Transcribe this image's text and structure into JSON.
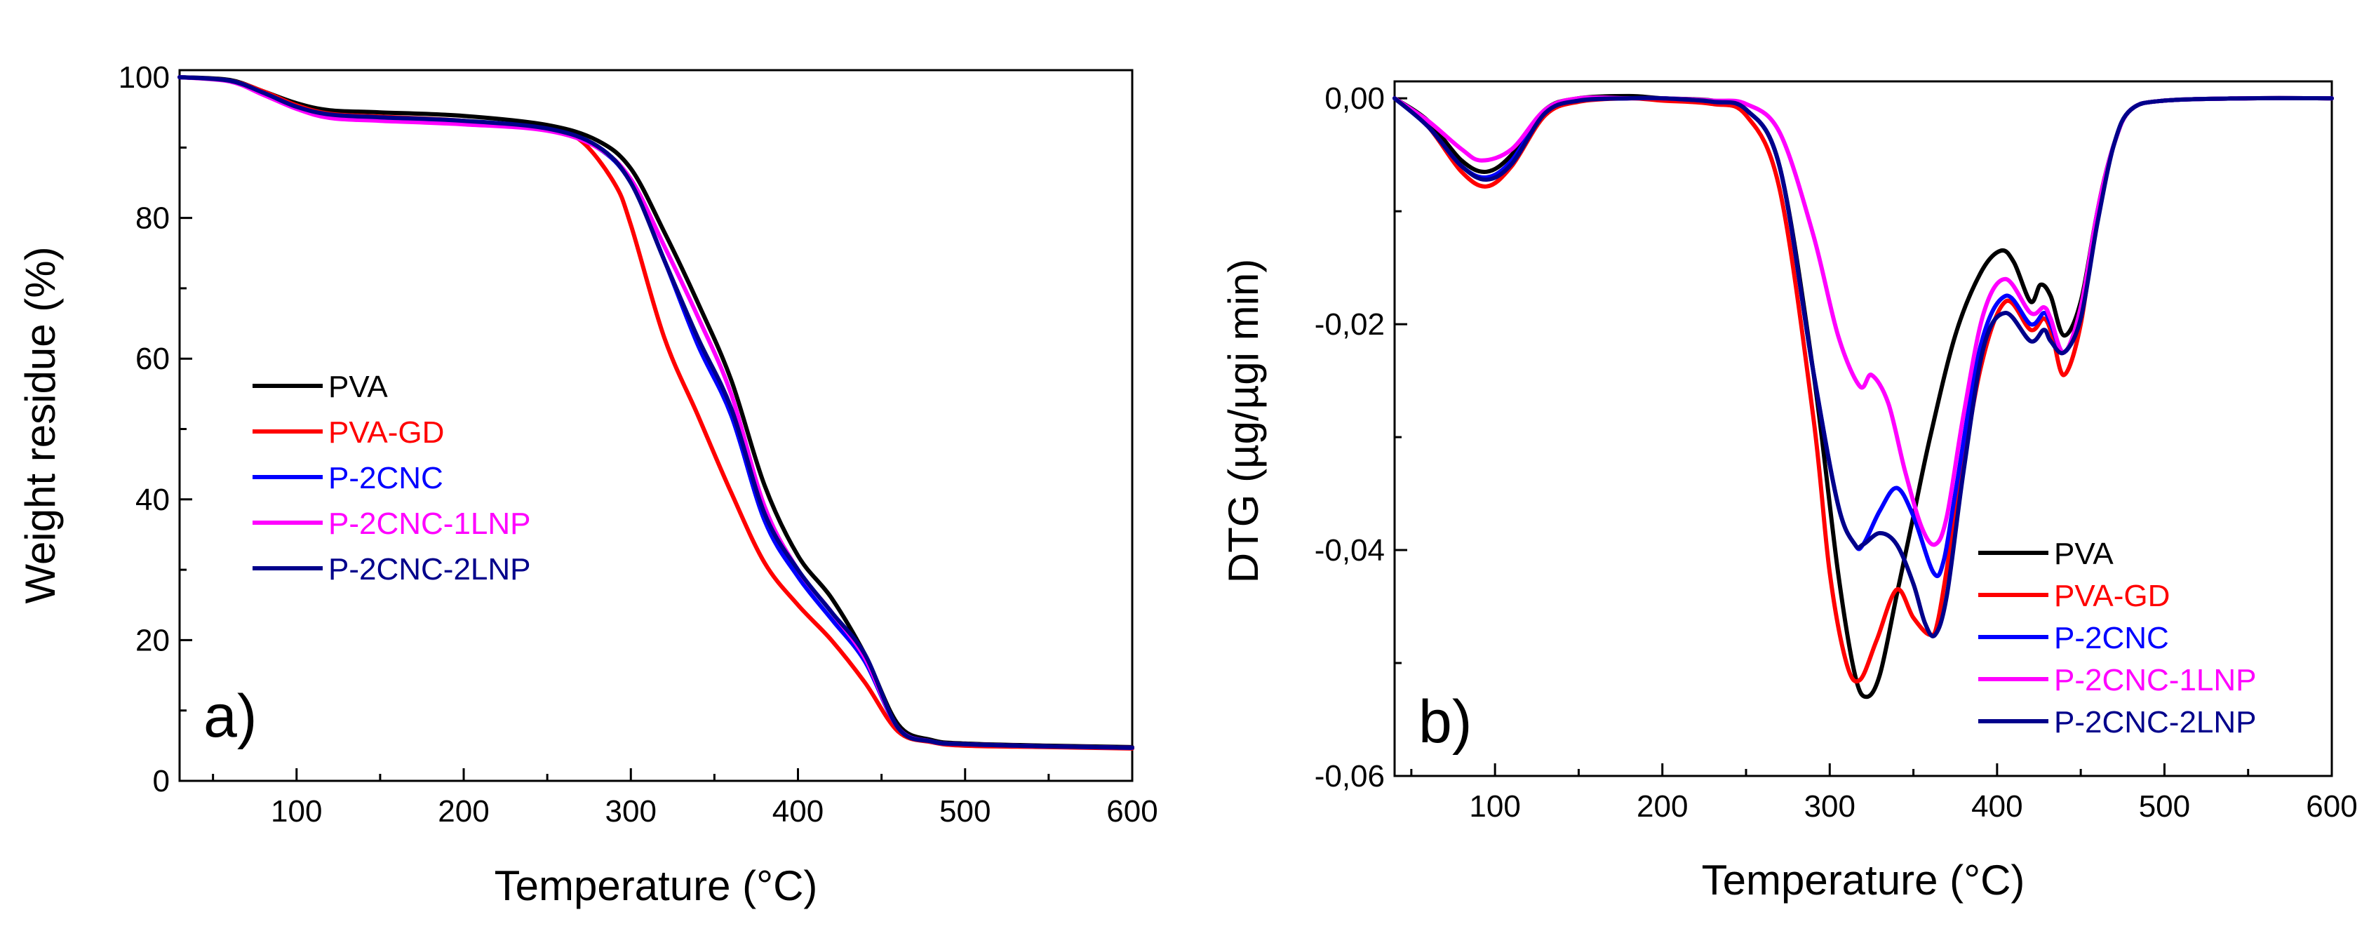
{
  "chart_data": [
    {
      "type": "line",
      "panel_label": "a)",
      "xlabel": "Temperature (°C)",
      "ylabel": "Weight residue (%)",
      "xlim": [
        30,
        600
      ],
      "ylim": [
        0,
        101
      ],
      "xticks": [
        100,
        200,
        300,
        400,
        500,
        600
      ],
      "xtick_labels": [
        "100",
        "200",
        "300",
        "400",
        "500",
        "600"
      ],
      "yticks": [
        0,
        20,
        40,
        60,
        80,
        100
      ],
      "ytick_labels": [
        "0",
        "20",
        "40",
        "60",
        "80",
        "100"
      ],
      "legend_position": "center-left",
      "series": [
        {
          "name": "PVA",
          "color": "#000000",
          "x": [
            30,
            60,
            80,
            100,
            120,
            150,
            200,
            250,
            280,
            300,
            320,
            340,
            360,
            380,
            400,
            420,
            440,
            460,
            480,
            500,
            550,
            600
          ],
          "y": [
            100,
            99.6,
            98,
            96.3,
            95.3,
            95,
            94.5,
            93.2,
            91,
            87,
            78,
            68,
            57,
            42,
            32,
            26,
            18,
            8,
            5.8,
            5.3,
            5,
            4.8
          ]
        },
        {
          "name": "PVA-GD",
          "color": "#ff0000",
          "x": [
            30,
            60,
            80,
            100,
            120,
            150,
            200,
            250,
            270,
            290,
            300,
            320,
            340,
            360,
            380,
            400,
            420,
            440,
            460,
            480,
            500,
            550,
            600
          ],
          "y": [
            100,
            99.5,
            98,
            96,
            94.8,
            94.4,
            93.8,
            92.5,
            91,
            85,
            79,
            63,
            52,
            41,
            31,
            25,
            20,
            14,
            7,
            5.5,
            5,
            4.8,
            4.6
          ]
        },
        {
          "name": "P-2CNC",
          "color": "#0000ff",
          "x": [
            30,
            60,
            80,
            100,
            120,
            150,
            200,
            250,
            280,
            300,
            320,
            340,
            360,
            380,
            400,
            420,
            440,
            460,
            480,
            500,
            550,
            600
          ],
          "y": [
            100,
            99.5,
            97.8,
            95.8,
            94.6,
            94.2,
            93.7,
            92.6,
            90,
            85,
            74,
            62,
            52,
            37,
            29,
            23,
            17,
            7.5,
            5.6,
            5.2,
            4.9,
            4.7
          ]
        },
        {
          "name": "P-2CNC-1LNP",
          "color": "#ff00ff",
          "x": [
            30,
            60,
            80,
            100,
            120,
            150,
            200,
            250,
            280,
            300,
            320,
            340,
            360,
            380,
            400,
            420,
            440,
            460,
            480,
            500,
            550,
            600
          ],
          "y": [
            100,
            99.4,
            97.5,
            95.5,
            94.2,
            93.8,
            93.3,
            92.4,
            90,
            85.5,
            76,
            66,
            55,
            39,
            30,
            24,
            17.5,
            7.5,
            5.6,
            5.2,
            4.9,
            4.7
          ]
        },
        {
          "name": "P-2CNC-2LNP",
          "color": "#00008b",
          "x": [
            30,
            60,
            80,
            100,
            120,
            150,
            200,
            250,
            280,
            300,
            320,
            340,
            360,
            380,
            400,
            420,
            440,
            460,
            480,
            500,
            550,
            600
          ],
          "y": [
            100,
            99.5,
            97.8,
            95.8,
            94.7,
            94.3,
            93.8,
            92.7,
            90.2,
            85,
            74,
            63,
            53,
            38,
            30,
            24,
            18,
            7.5,
            5.6,
            5.2,
            4.9,
            4.7
          ]
        }
      ]
    },
    {
      "type": "line",
      "panel_label": "b)",
      "xlabel": "Temperature (°C)",
      "ylabel": "DTG (µg/µgi min)",
      "xlim": [
        40,
        600
      ],
      "ylim": [
        -0.06,
        0.0015
      ],
      "xticks": [
        100,
        200,
        300,
        400,
        500,
        600
      ],
      "xtick_labels": [
        "100",
        "200",
        "300",
        "400",
        "500",
        "600"
      ],
      "yticks": [
        0,
        -0.02,
        -0.04,
        -0.06
      ],
      "ytick_labels": [
        "0,00",
        "-0,02",
        "-0,04",
        "-0,06"
      ],
      "legend_position": "bottom-right",
      "series": [
        {
          "name": "PVA",
          "color": "#000000",
          "x": [
            40,
            60,
            80,
            95,
            110,
            130,
            150,
            180,
            200,
            230,
            250,
            270,
            290,
            305,
            315,
            322,
            330,
            340,
            350,
            360,
            375,
            390,
            402,
            410,
            420,
            426,
            432,
            440,
            450,
            460,
            470,
            480,
            500,
            550,
            600
          ],
          "y": [
            0,
            -0.002,
            -0.0055,
            -0.0065,
            -0.005,
            -0.001,
            0,
            0.0002,
            0,
            -0.0002,
            -0.001,
            -0.006,
            -0.024,
            -0.042,
            -0.051,
            -0.053,
            -0.051,
            -0.044,
            -0.037,
            -0.03,
            -0.021,
            -0.0155,
            -0.0135,
            -0.0145,
            -0.018,
            -0.0165,
            -0.0175,
            -0.021,
            -0.018,
            -0.01,
            -0.004,
            -0.001,
            -0.0002,
            0,
            0
          ]
        },
        {
          "name": "PVA-GD",
          "color": "#ff0000",
          "x": [
            40,
            60,
            80,
            95,
            110,
            130,
            150,
            180,
            200,
            230,
            250,
            270,
            290,
            300,
            310,
            318,
            328,
            340,
            350,
            360,
            365,
            375,
            390,
            405,
            420,
            428,
            433,
            440,
            450,
            460,
            470,
            480,
            500,
            550,
            600
          ],
          "y": [
            0,
            -0.0025,
            -0.0065,
            -0.0078,
            -0.006,
            -0.0015,
            -0.0003,
            0,
            -0.0002,
            -0.0005,
            -0.0015,
            -0.008,
            -0.028,
            -0.042,
            -0.05,
            -0.0515,
            -0.048,
            -0.0435,
            -0.046,
            -0.0475,
            -0.046,
            -0.037,
            -0.024,
            -0.018,
            -0.0205,
            -0.0195,
            -0.021,
            -0.0245,
            -0.02,
            -0.01,
            -0.004,
            -0.001,
            -0.0002,
            0,
            0
          ]
        },
        {
          "name": "P-2CNC",
          "color": "#0000ff",
          "x": [
            40,
            60,
            80,
            95,
            110,
            130,
            150,
            180,
            200,
            230,
            250,
            270,
            290,
            305,
            315,
            320,
            330,
            340,
            350,
            362,
            368,
            375,
            390,
            405,
            420,
            428,
            432,
            440,
            450,
            460,
            470,
            480,
            500,
            550,
            600
          ],
          "y": [
            0,
            -0.0025,
            -0.006,
            -0.007,
            -0.0055,
            -0.0012,
            -0.0002,
            0,
            0,
            -0.0003,
            -0.001,
            -0.006,
            -0.024,
            -0.036,
            -0.0395,
            -0.0395,
            -0.0365,
            -0.0345,
            -0.037,
            -0.042,
            -0.041,
            -0.035,
            -0.022,
            -0.0175,
            -0.02,
            -0.019,
            -0.02,
            -0.0225,
            -0.019,
            -0.01,
            -0.004,
            -0.001,
            -0.0002,
            0,
            0
          ]
        },
        {
          "name": "P-2CNC-1LNP",
          "color": "#ff00ff",
          "x": [
            40,
            60,
            80,
            92,
            110,
            130,
            150,
            180,
            200,
            230,
            250,
            270,
            290,
            305,
            318,
            325,
            335,
            345,
            355,
            363,
            370,
            380,
            392,
            405,
            420,
            428,
            432,
            440,
            450,
            460,
            470,
            480,
            500,
            550,
            600
          ],
          "y": [
            0,
            -0.002,
            -0.0045,
            -0.0055,
            -0.0045,
            -0.001,
            0,
            0,
            0,
            -0.0002,
            -0.0005,
            -0.003,
            -0.012,
            -0.021,
            -0.0255,
            -0.0245,
            -0.027,
            -0.033,
            -0.038,
            -0.0395,
            -0.037,
            -0.028,
            -0.019,
            -0.016,
            -0.019,
            -0.0185,
            -0.0195,
            -0.0225,
            -0.0185,
            -0.01,
            -0.004,
            -0.001,
            -0.0002,
            0,
            0
          ]
        },
        {
          "name": "P-2CNC-2LNP",
          "color": "#00008b",
          "x": [
            40,
            60,
            80,
            95,
            110,
            130,
            150,
            180,
            200,
            230,
            250,
            270,
            290,
            305,
            315,
            320,
            330,
            340,
            350,
            357,
            363,
            370,
            380,
            392,
            405,
            420,
            428,
            432,
            440,
            450,
            460,
            470,
            480,
            500,
            550,
            600
          ],
          "y": [
            0,
            -0.0025,
            -0.006,
            -0.0072,
            -0.0058,
            -0.0013,
            -0.0002,
            0,
            0,
            -0.0003,
            -0.001,
            -0.006,
            -0.024,
            -0.036,
            -0.0395,
            -0.0395,
            -0.0385,
            -0.0395,
            -0.043,
            -0.0465,
            -0.0475,
            -0.044,
            -0.033,
            -0.022,
            -0.019,
            -0.0215,
            -0.0205,
            -0.0215,
            -0.0225,
            -0.0195,
            -0.011,
            -0.004,
            -0.001,
            -0.0002,
            0,
            0
          ]
        }
      ]
    }
  ]
}
